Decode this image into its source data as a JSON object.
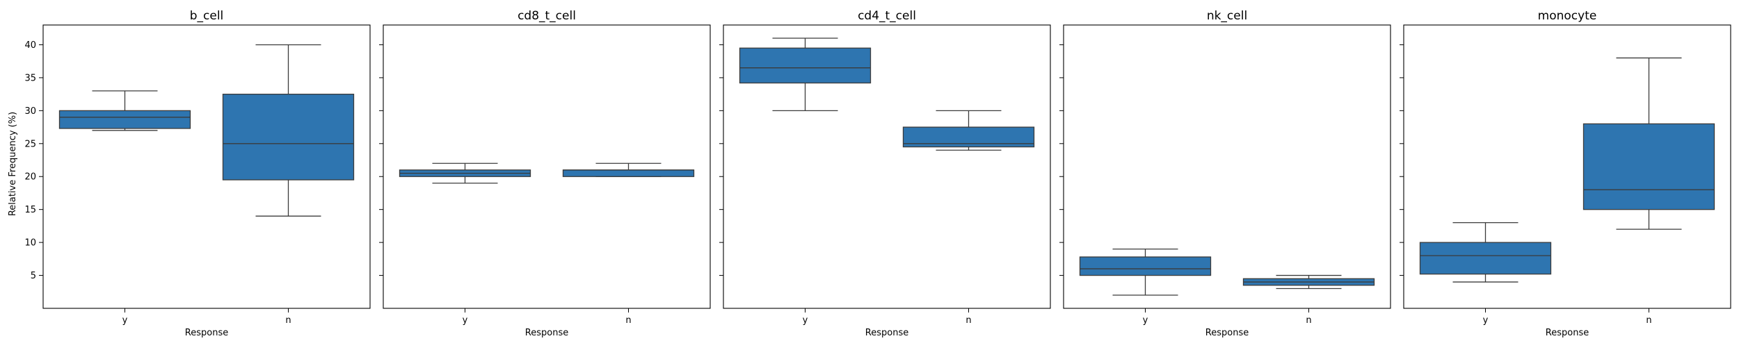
{
  "chart_data": {
    "type": "box",
    "ylabel": "Relative Frequency (%)",
    "xlabel": "Response",
    "categories": [
      "y",
      "n"
    ],
    "ylim": [
      0,
      43
    ],
    "yticks": [
      5,
      10,
      15,
      20,
      25,
      30,
      35,
      40
    ],
    "shared_y": true,
    "grid": false,
    "box_color": "#2e75b0",
    "line_color": "#3b3b3b",
    "panels": [
      {
        "title": "b_cell",
        "boxes": [
          {
            "category": "y",
            "whisker_low": 27.0,
            "q1": 27.3,
            "median": 29.0,
            "q3": 30.0,
            "whisker_high": 33.0
          },
          {
            "category": "n",
            "whisker_low": 14.0,
            "q1": 19.5,
            "median": 25.0,
            "q3": 32.5,
            "whisker_high": 40.0
          }
        ]
      },
      {
        "title": "cd8_t_cell",
        "boxes": [
          {
            "category": "y",
            "whisker_low": 19.0,
            "q1": 20.0,
            "median": 20.5,
            "q3": 21.0,
            "whisker_high": 22.0
          },
          {
            "category": "n",
            "whisker_low": 20.0,
            "q1": 20.0,
            "median": 21.0,
            "q3": 21.0,
            "whisker_high": 22.0
          }
        ]
      },
      {
        "title": "cd4_t_cell",
        "boxes": [
          {
            "category": "y",
            "whisker_low": 30.0,
            "q1": 34.2,
            "median": 36.5,
            "q3": 39.5,
            "whisker_high": 41.0
          },
          {
            "category": "n",
            "whisker_low": 24.0,
            "q1": 24.5,
            "median": 25.0,
            "q3": 27.5,
            "whisker_high": 30.0
          }
        ]
      },
      {
        "title": "nk_cell",
        "boxes": [
          {
            "category": "y",
            "whisker_low": 2.0,
            "q1": 5.0,
            "median": 6.0,
            "q3": 7.8,
            "whisker_high": 9.0
          },
          {
            "category": "n",
            "whisker_low": 3.0,
            "q1": 3.5,
            "median": 4.0,
            "q3": 4.5,
            "whisker_high": 5.0
          }
        ]
      },
      {
        "title": "monocyte",
        "boxes": [
          {
            "category": "y",
            "whisker_low": 4.0,
            "q1": 5.2,
            "median": 8.0,
            "q3": 10.0,
            "whisker_high": 13.0
          },
          {
            "category": "n",
            "whisker_low": 12.0,
            "q1": 15.0,
            "median": 18.0,
            "q3": 28.0,
            "whisker_high": 38.0
          }
        ]
      }
    ]
  }
}
